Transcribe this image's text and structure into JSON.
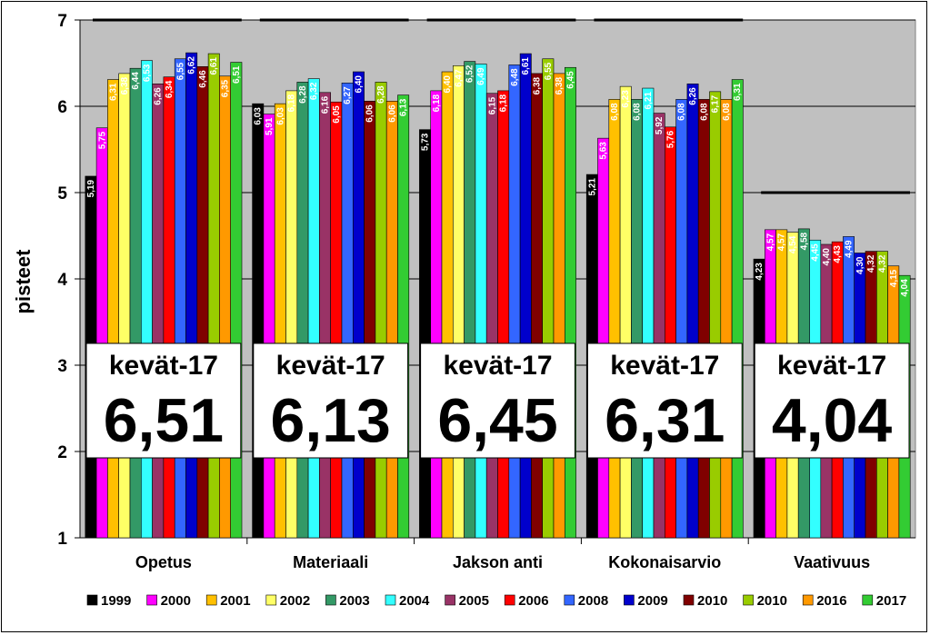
{
  "chart_data": {
    "type": "bar",
    "ylabel": "pisteet",
    "ylim": [
      1,
      7
    ],
    "yticks": [
      "1",
      "2",
      "3",
      "4",
      "5",
      "6",
      "7"
    ],
    "grid": "horizontal",
    "legend_position": "bottom",
    "categories": [
      "Opetus",
      "Materiaali",
      "Jakson anti",
      "Kokonaisarvio",
      "Vaativuus"
    ],
    "series": [
      {
        "name": "1999",
        "color": "#000000",
        "values": [
          5.19,
          6.03,
          5.73,
          5.21,
          4.23
        ],
        "labels": [
          "5,19",
          "6,03",
          "5,73",
          "5,21",
          "4,23"
        ]
      },
      {
        "name": "2000",
        "color": "#ff00ff",
        "values": [
          5.75,
          5.91,
          6.18,
          5.63,
          4.57
        ],
        "labels": [
          "5,75",
          "5,91",
          "6,18",
          "5,63",
          "4,57"
        ]
      },
      {
        "name": "2001",
        "color": "#ffc000",
        "values": [
          6.31,
          6.03,
          6.4,
          6.08,
          4.57
        ],
        "labels": [
          "6,31",
          "6,03",
          "6,40",
          "6,08",
          "4,57"
        ]
      },
      {
        "name": "2002",
        "color": "#ffff66",
        "values": [
          6.38,
          6.18,
          6.47,
          6.23,
          4.54
        ],
        "labels": [
          "6,38",
          "6,18",
          "6,47",
          "6,23",
          "4,54"
        ]
      },
      {
        "name": "2003",
        "color": "#339966",
        "values": [
          6.44,
          6.28,
          6.52,
          6.08,
          4.58
        ],
        "labels": [
          "6,44",
          "6,28",
          "6,52",
          "6,08",
          "4,58"
        ]
      },
      {
        "name": "2004",
        "color": "#33ffff",
        "values": [
          6.53,
          6.32,
          6.49,
          6.21,
          4.45
        ],
        "labels": [
          "6,53",
          "6,32",
          "6,49",
          "6,21",
          "4,45"
        ]
      },
      {
        "name": "2005",
        "color": "#993366",
        "values": [
          6.26,
          6.16,
          6.15,
          5.92,
          4.4
        ],
        "labels": [
          "6,26",
          "6,16",
          "6,15",
          "5,92",
          "4,40"
        ]
      },
      {
        "name": "2006",
        "color": "#ff0000",
        "values": [
          6.34,
          6.05,
          6.18,
          5.76,
          4.43
        ],
        "labels": [
          "6,34",
          "6,05",
          "6,18",
          "5,76",
          "4,43"
        ]
      },
      {
        "name": "2008",
        "color": "#3366ff",
        "values": [
          6.55,
          6.27,
          6.48,
          6.08,
          4.49
        ],
        "labels": [
          "6,55",
          "6,27",
          "6,48",
          "6,08",
          "4,49"
        ]
      },
      {
        "name": "2009",
        "color": "#0000cc",
        "values": [
          6.62,
          6.4,
          6.61,
          6.26,
          4.3
        ],
        "labels": [
          "6,62",
          "6,40",
          "6,61",
          "6,26",
          "4,30"
        ]
      },
      {
        "name": "2010",
        "color": "#800000",
        "values": [
          6.46,
          6.06,
          6.38,
          6.08,
          4.32
        ],
        "labels": [
          "6,46",
          "6,06",
          "6,38",
          "6,08",
          "4,32"
        ]
      },
      {
        "name": "2010",
        "color": "#99cc00",
        "values": [
          6.61,
          6.28,
          6.55,
          6.17,
          4.32
        ],
        "labels": [
          "6,61",
          "6,28",
          "6,55",
          "6,17",
          "4,32"
        ]
      },
      {
        "name": "2016",
        "color": "#ff9900",
        "values": [
          6.35,
          6.06,
          6.38,
          6.08,
          4.15
        ],
        "labels": [
          "6,35",
          "6,06",
          "6,38",
          "6,08",
          "4,15"
        ]
      },
      {
        "name": "2017",
        "color": "#33cc33",
        "values": [
          6.51,
          6.13,
          6.45,
          6.31,
          4.04
        ],
        "labels": [
          "6,51",
          "6,13",
          "6,45",
          "6,31",
          "4,04"
        ]
      }
    ],
    "reference_lines": [
      7,
      7,
      7,
      7,
      5
    ],
    "callouts": [
      {
        "label": "kevät-17",
        "value": "6,51"
      },
      {
        "label": "kevät-17",
        "value": "6,13"
      },
      {
        "label": "kevät-17",
        "value": "6,45"
      },
      {
        "label": "kevät-17",
        "value": "6,31"
      },
      {
        "label": "kevät-17",
        "value": "4,04"
      }
    ]
  }
}
